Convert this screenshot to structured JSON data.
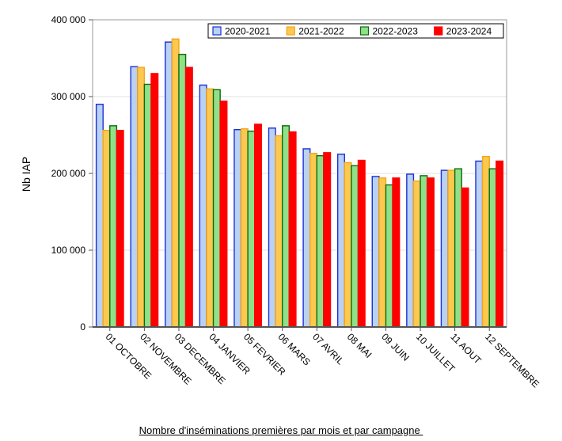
{
  "chart_data": {
    "type": "bar",
    "title": "",
    "ylabel": "Nb IAP",
    "xlabel": "",
    "ylim": [
      0,
      400000
    ],
    "yticks": [
      0,
      100000,
      200000,
      300000,
      400000
    ],
    "ytick_labels": [
      "0",
      "100 000",
      "200 000",
      "300 000",
      "400 000"
    ],
    "grid": true,
    "legend_position": "top-right",
    "categories": [
      "01 OCTOBRE",
      "02 NOVEMBRE",
      "03 DECEMBRE",
      "04 JANVIER",
      "05 FEVRIER",
      "06 MARS",
      "07 AVRIL",
      "08 MAI",
      "09 JUIN",
      "10 JUILLET",
      "11 AOUT",
      "12 SEPTEMBRE"
    ],
    "series": [
      {
        "name": "2020-2021",
        "color": "#b9d1f2",
        "border": "#1c2fd6",
        "values": [
          290000,
          339000,
          371000,
          315000,
          257000,
          259000,
          232000,
          225000,
          196000,
          199000,
          204000,
          216000
        ]
      },
      {
        "name": "2021-2022",
        "color": "#fcc84f",
        "border": "#f2a61a",
        "values": [
          256000,
          338000,
          375000,
          310000,
          258000,
          249000,
          226000,
          214000,
          194000,
          190000,
          204000,
          222000
        ]
      },
      {
        "name": "2022-2023",
        "color": "#90e08a",
        "border": "#0b6b0b",
        "values": [
          262000,
          316000,
          355000,
          309000,
          255000,
          262000,
          223000,
          210000,
          185000,
          197000,
          206000,
          206000
        ]
      },
      {
        "name": "2023-2024",
        "color": "#ff0000",
        "border": "#ff0000",
        "values": [
          256000,
          330000,
          338000,
          294000,
          264000,
          254000,
          227000,
          217000,
          194000,
          194000,
          181000,
          216000
        ]
      }
    ]
  },
  "caption": "Nombre d'inséminations premières par mois et par campagne "
}
